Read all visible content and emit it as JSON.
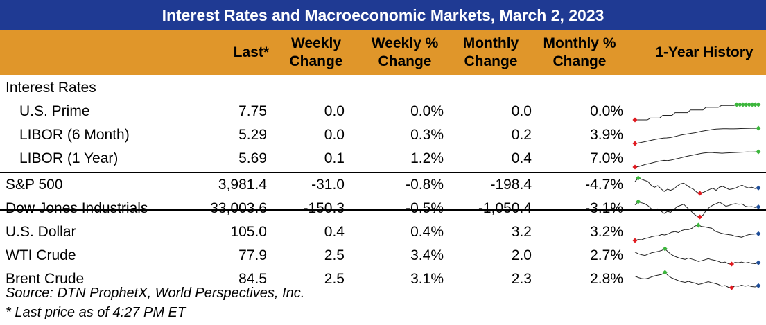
{
  "title": "Interest Rates and Macroeconomic Markets, March 2, 2023",
  "columns": {
    "last": "Last*",
    "weekly_change": [
      "Weekly",
      "Change"
    ],
    "weekly_pct": [
      "Weekly %",
      "Change"
    ],
    "monthly_change": [
      "Monthly",
      "Change"
    ],
    "monthly_pct": [
      "Monthly %",
      "Change"
    ],
    "history": "1-Year History"
  },
  "section_interest": "Interest Rates",
  "footnotes": {
    "source": "Source: DTN ProphetX, World Perspectives, Inc.",
    "last_note": "* Last price as of 4:27 PM ET"
  },
  "colors": {
    "title_bg": "#1f3a93",
    "header_bg": "#e0962a",
    "min_marker": "#e0191f",
    "max_marker": "#3cb63c",
    "last_marker": "#1f4e99"
  },
  "chart_data": {
    "type": "table",
    "title": "Interest Rates and Macroeconomic Markets, March 2, 2023",
    "rows": [
      {
        "name": "U.S. Prime",
        "last": "7.75",
        "weekly_change": "0.0",
        "weekly_pct": "0.0%",
        "monthly_change": "0.0",
        "monthly_pct": "0.0%",
        "sparkline": [
          3.5,
          3.5,
          3.5,
          3.5,
          3.5,
          4.0,
          4.0,
          4.0,
          4.0,
          4.75,
          4.75,
          4.75,
          4.75,
          5.5,
          5.5,
          5.5,
          5.5,
          5.5,
          6.25,
          6.25,
          6.25,
          6.25,
          6.25,
          7.0,
          7.0,
          7.0,
          7.0,
          7.0,
          7.5,
          7.5,
          7.5,
          7.5,
          7.5,
          7.75,
          7.75,
          7.75,
          7.75,
          7.75,
          7.75,
          7.75,
          7.75
        ]
      },
      {
        "name": "LIBOR (6 Month)",
        "last": "5.29",
        "weekly_change": "0.0",
        "weekly_pct": "0.3%",
        "monthly_change": "0.2",
        "monthly_pct": "3.9%",
        "sparkline": [
          1.3,
          1.45,
          1.6,
          1.8,
          2.0,
          2.2,
          2.4,
          2.55,
          2.7,
          2.75,
          2.85,
          3.05,
          3.25,
          3.5,
          3.65,
          3.8,
          3.95,
          4.1,
          4.3,
          4.5,
          4.65,
          4.8,
          4.95,
          5.05,
          5.1,
          5.15,
          5.15,
          5.12,
          5.13,
          5.16,
          5.2,
          5.22,
          5.25,
          5.27,
          5.28,
          5.29
        ]
      },
      {
        "name": "LIBOR (1 Year)",
        "last": "5.69",
        "weekly_change": "0.1",
        "weekly_pct": "1.2%",
        "monthly_change": "0.4",
        "monthly_pct": "7.0%",
        "sparkline": [
          1.55,
          1.7,
          2.0,
          2.3,
          2.5,
          2.75,
          3.0,
          3.2,
          3.35,
          3.3,
          3.45,
          3.7,
          3.9,
          4.15,
          4.4,
          4.6,
          4.8,
          5.0,
          5.2,
          5.35,
          5.45,
          5.5,
          5.4,
          5.35,
          5.3,
          5.35,
          5.4,
          5.45,
          5.5,
          5.55,
          5.6,
          5.65,
          5.62,
          5.66,
          5.69
        ]
      },
      {
        "name": "S&P 500",
        "last": "3,981.4",
        "weekly_change": "-31.0",
        "weekly_pct": "-0.8%",
        "monthly_change": "-198.4",
        "monthly_pct": "-4.7%",
        "sparkline": [
          4380,
          4600,
          4530,
          4450,
          4380,
          4140,
          4020,
          4120,
          3930,
          3760,
          3900,
          3830,
          3920,
          4100,
          4240,
          4280,
          4140,
          4000,
          3900,
          3720,
          3640,
          3700,
          3790,
          3890,
          3960,
          3830,
          4030,
          4080,
          3990,
          3880,
          3920,
          3970,
          4080,
          4150,
          4040,
          3980,
          4020,
          3940,
          3980
        ]
      },
      {
        "name": "Dow Jones Industrials",
        "last": "33,003.6",
        "weekly_change": "-150.3",
        "weekly_pct": "-0.5%",
        "monthly_change": "-1,050.4",
        "monthly_pct": "-3.1%",
        "sparkline": [
          33700,
          34800,
          34400,
          34100,
          33400,
          32400,
          31600,
          32300,
          31500,
          30700,
          31400,
          31100,
          32100,
          33100,
          33500,
          33900,
          32800,
          31800,
          30700,
          29800,
          29500,
          30200,
          31900,
          32900,
          33600,
          34100,
          34600,
          34000,
          33200,
          33500,
          33900,
          34100,
          33900,
          34000,
          33200,
          33000,
          33100,
          32800,
          33000
        ]
      },
      {
        "name": "U.S. Dollar",
        "last": "105.0",
        "weekly_change": "0.4",
        "weekly_pct": "0.4%",
        "monthly_change": "3.2",
        "monthly_pct": "3.2%",
        "sparkline": [
          97.6,
          98.7,
          98.4,
          99.8,
          100.6,
          101.8,
          102.6,
          102.8,
          104.2,
          103.6,
          104.9,
          106.7,
          107.4,
          106.4,
          108.6,
          109.7,
          109.5,
          111.0,
          113.6,
          114.4,
          113.0,
          112.6,
          111.8,
          111.2,
          107.8,
          106.6,
          105.4,
          104.6,
          104.1,
          103.6,
          102.3,
          101.9,
          101.2,
          102.7,
          103.9,
          104.5,
          104.8,
          105.0
        ]
      },
      {
        "name": "WTI Crude",
        "last": "77.9",
        "weekly_change": "2.5",
        "weekly_pct": "3.4%",
        "monthly_change": "2.0",
        "monthly_pct": "2.7%",
        "sparkline": [
          110,
          105,
          102,
          100,
          104,
          108,
          110,
          112,
          115,
          120,
          110,
          102,
          97,
          93,
          90,
          88,
          92,
          89,
          86,
          82,
          84,
          87,
          90,
          87,
          85,
          82,
          78,
          80,
          75,
          74,
          79,
          78,
          80,
          77,
          79,
          76,
          75,
          77.9
        ]
      },
      {
        "name": "Brent Crude",
        "last": "84.5",
        "weekly_change": "2.5",
        "weekly_pct": "3.1%",
        "monthly_change": "2.3",
        "monthly_pct": "2.8%",
        "sparkline": [
          112,
          108,
          105,
          104,
          106,
          110,
          113,
          115,
          117,
          123,
          113,
          107,
          103,
          99,
          96,
          94,
          97,
          94,
          92,
          88,
          90,
          93,
          96,
          93,
          91,
          88,
          83,
          85,
          80,
          79,
          84,
          83,
          86,
          83,
          85,
          82,
          81,
          84.5
        ]
      }
    ]
  }
}
